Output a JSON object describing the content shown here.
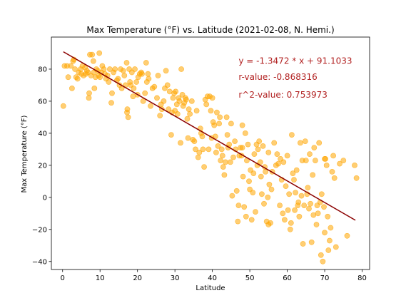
{
  "chart_data": {
    "type": "scatter",
    "title": "Max Temperature (°F) vs. Latitude (2021-02-08, N. Hemi.)",
    "xlabel": "Latitude",
    "ylabel": "Max Temperature (°F)",
    "xlim": [
      -3,
      82
    ],
    "ylim": [
      -45,
      100
    ],
    "xticks": [
      0,
      10,
      20,
      30,
      40,
      50,
      60,
      70,
      80
    ],
    "yticks": [
      -40,
      -20,
      0,
      20,
      40,
      60,
      80
    ],
    "grid": false,
    "marker_color": "#FFA500",
    "line_color": "#8B0000",
    "annotation_color": "#B22222",
    "regression": {
      "slope": -1.3472,
      "intercept": 91.1033,
      "x_range": [
        0.2,
        78.2
      ]
    },
    "annotations": [
      "y = -1.3472 * x + 91.1033",
      "r-value: -0.868316",
      "r^2-value: 0.753973"
    ],
    "points": [
      [
        0.2,
        57
      ],
      [
        0.5,
        82
      ],
      [
        1.2,
        82
      ],
      [
        1.5,
        75
      ],
      [
        2.2,
        82
      ],
      [
        2.5,
        68
      ],
      [
        2.8,
        85
      ],
      [
        3,
        86
      ],
      [
        3.3,
        80
      ],
      [
        3.6,
        75
      ],
      [
        4,
        74
      ],
      [
        4.3,
        78
      ],
      [
        4.8,
        80
      ],
      [
        5,
        77
      ],
      [
        5.3,
        82
      ],
      [
        5.6,
        76
      ],
      [
        6,
        81
      ],
      [
        6.2,
        77
      ],
      [
        6.5,
        79
      ],
      [
        6.8,
        78
      ],
      [
        7,
        62
      ],
      [
        7.1,
        65
      ],
      [
        7.3,
        89
      ],
      [
        7.6,
        76
      ],
      [
        7.9,
        89
      ],
      [
        8.2,
        85
      ],
      [
        8.3,
        78
      ],
      [
        8.5,
        68
      ],
      [
        8.8,
        75
      ],
      [
        9,
        80
      ],
      [
        9.4,
        79
      ],
      [
        9.6,
        76
      ],
      [
        9.8,
        90
      ],
      [
        10,
        75
      ],
      [
        10.3,
        78
      ],
      [
        10.6,
        82
      ],
      [
        11,
        80
      ],
      [
        11.3,
        77
      ],
      [
        11.6,
        74
      ],
      [
        12,
        76
      ],
      [
        12.3,
        72
      ],
      [
        12.6,
        80
      ],
      [
        13,
        59
      ],
      [
        13.2,
        65
      ],
      [
        13.6,
        78
      ],
      [
        14,
        80
      ],
      [
        14.5,
        73
      ],
      [
        14.8,
        74
      ],
      [
        15.2,
        70
      ],
      [
        15.5,
        80
      ],
      [
        15.8,
        68
      ],
      [
        16.2,
        79
      ],
      [
        16.5,
        76
      ],
      [
        16.8,
        70
      ],
      [
        17.1,
        84
      ],
      [
        17.2,
        53
      ],
      [
        17.3,
        55
      ],
      [
        17.5,
        50
      ],
      [
        17.8,
        80
      ],
      [
        18,
        72
      ],
      [
        18.2,
        70
      ],
      [
        18.5,
        78
      ],
      [
        18.8,
        63
      ],
      [
        19,
        68
      ],
      [
        19.3,
        80
      ],
      [
        19.7,
        72
      ],
      [
        20,
        64
      ],
      [
        20.2,
        75
      ],
      [
        20.6,
        77
      ],
      [
        21,
        78
      ],
      [
        21.2,
        77
      ],
      [
        21.5,
        60
      ],
      [
        22,
        65
      ],
      [
        22.3,
        84
      ],
      [
        22.5,
        72
      ],
      [
        22.8,
        77
      ],
      [
        23,
        74
      ],
      [
        23.5,
        57
      ],
      [
        24,
        68
      ],
      [
        24.5,
        69
      ],
      [
        25.2,
        62
      ],
      [
        25.5,
        76
      ],
      [
        26,
        51
      ],
      [
        26.3,
        58
      ],
      [
        26.5,
        55
      ],
      [
        27,
        60
      ],
      [
        27.3,
        68
      ],
      [
        27.6,
        79
      ],
      [
        28,
        70
      ],
      [
        28.3,
        55
      ],
      [
        28.6,
        66
      ],
      [
        29,
        39
      ],
      [
        29.2,
        53
      ],
      [
        29.5,
        62
      ],
      [
        29.8,
        65
      ],
      [
        30,
        54
      ],
      [
        30.2,
        66
      ],
      [
        30.5,
        58
      ],
      [
        30.7,
        52
      ],
      [
        31,
        62
      ],
      [
        31.2,
        60
      ],
      [
        31.5,
        34
      ],
      [
        31.7,
        80
      ],
      [
        32,
        64
      ],
      [
        32.2,
        57
      ],
      [
        32.5,
        59
      ],
      [
        32.8,
        62
      ],
      [
        33,
        61
      ],
      [
        33.3,
        49
      ],
      [
        33.5,
        37
      ],
      [
        33.7,
        55
      ],
      [
        34,
        52
      ],
      [
        34.5,
        60
      ],
      [
        34.8,
        36
      ],
      [
        35.2,
        35
      ],
      [
        35.5,
        30
      ],
      [
        35.8,
        54
      ],
      [
        36.2,
        25
      ],
      [
        36.5,
        28
      ],
      [
        36.8,
        43
      ],
      [
        37,
        40
      ],
      [
        37.3,
        38
      ],
      [
        37.5,
        30
      ],
      [
        37.8,
        19
      ],
      [
        38.1,
        61
      ],
      [
        38.4,
        58
      ],
      [
        38.7,
        63
      ],
      [
        39,
        30
      ],
      [
        39.3,
        63
      ],
      [
        39.6,
        54
      ],
      [
        39.8,
        37
      ],
      [
        40,
        62
      ],
      [
        40.2,
        47
      ],
      [
        40.5,
        45
      ],
      [
        40.8,
        38
      ],
      [
        41,
        28
      ],
      [
        41.2,
        53
      ],
      [
        41.5,
        32
      ],
      [
        41.8,
        46
      ],
      [
        42,
        50
      ],
      [
        42.2,
        23
      ],
      [
        42.5,
        30
      ],
      [
        42.7,
        26
      ],
      [
        42.9,
        19
      ],
      [
        43.2,
        14
      ],
      [
        43.5,
        22
      ],
      [
        43.8,
        50
      ],
      [
        44,
        39
      ],
      [
        44.2,
        31
      ],
      [
        44.5,
        33
      ],
      [
        44.8,
        22
      ],
      [
        45,
        46
      ],
      [
        45.3,
        1
      ],
      [
        45.6,
        25
      ],
      [
        46,
        35
      ],
      [
        46.2,
        30
      ],
      [
        46.5,
        4
      ],
      [
        46.8,
        -15
      ],
      [
        47,
        -5
      ],
      [
        47.2,
        26
      ],
      [
        47.5,
        31
      ],
      [
        47.8,
        26
      ],
      [
        48,
        45
      ],
      [
        48.2,
        13
      ],
      [
        48.5,
        -6
      ],
      [
        48.8,
        40
      ],
      [
        49,
        -12
      ],
      [
        49.2,
        23
      ],
      [
        49.5,
        33
      ],
      [
        49.8,
        10
      ],
      [
        50,
        5
      ],
      [
        50.2,
        17
      ],
      [
        50.5,
        -14
      ],
      [
        50.8,
        3
      ],
      [
        51,
        15
      ],
      [
        51.2,
        27
      ],
      [
        51.5,
        -9
      ],
      [
        51.8,
        33
      ],
      [
        52,
        20
      ],
      [
        52.2,
        30
      ],
      [
        52.5,
        35
      ],
      [
        52.8,
        22
      ],
      [
        53,
        13
      ],
      [
        53.2,
        2
      ],
      [
        53.5,
        32
      ],
      [
        53.8,
        -4
      ],
      [
        54,
        19
      ],
      [
        54.2,
        16
      ],
      [
        54.5,
        -15
      ],
      [
        54.8,
        0
      ],
      [
        55,
        -17
      ],
      [
        55.2,
        8
      ],
      [
        55.5,
        -16
      ],
      [
        55.8,
        5
      ],
      [
        56,
        16
      ],
      [
        56.5,
        34
      ],
      [
        57,
        20
      ],
      [
        57.3,
        27
      ],
      [
        57.6,
        21
      ],
      [
        58,
        -5
      ],
      [
        58.2,
        24
      ],
      [
        58.5,
        11
      ],
      [
        58.8,
        -10
      ],
      [
        59,
        22
      ],
      [
        59.3,
        -14
      ],
      [
        59.6,
        7
      ],
      [
        60,
        26
      ],
      [
        60.2,
        -8
      ],
      [
        60.5,
        2
      ],
      [
        60.8,
        -20
      ],
      [
        61,
        -16
      ],
      [
        61.2,
        39
      ],
      [
        61.5,
        15
      ],
      [
        61.8,
        11
      ],
      [
        62,
        -8
      ],
      [
        62.2,
        3
      ],
      [
        62.5,
        17
      ],
      [
        62.8,
        -5
      ],
      [
        63,
        -3
      ],
      [
        63.2,
        -12
      ],
      [
        63.5,
        34
      ],
      [
        63.8,
        1
      ],
      [
        64,
        23
      ],
      [
        64.2,
        -29
      ],
      [
        64.5,
        -5
      ],
      [
        64.8,
        35
      ],
      [
        65,
        23
      ],
      [
        65.3,
        2
      ],
      [
        65.5,
        6
      ],
      [
        65.8,
        -7
      ],
      [
        66,
        27
      ],
      [
        66.2,
        -4
      ],
      [
        66.5,
        -28
      ],
      [
        66.8,
        14
      ],
      [
        67,
        -11
      ],
      [
        67.2,
        31
      ],
      [
        67.5,
        23
      ],
      [
        67.8,
        -17
      ],
      [
        68,
        -5
      ],
      [
        68.2,
        -10
      ],
      [
        68.5,
        34
      ],
      [
        68.8,
        -3
      ],
      [
        69,
        -36
      ],
      [
        69.2,
        2
      ],
      [
        69.5,
        -40
      ],
      [
        69.8,
        -6
      ],
      [
        70,
        -22
      ],
      [
        70.2,
        24
      ],
      [
        70.5,
        20
      ],
      [
        70.8,
        -12
      ],
      [
        71,
        -33
      ],
      [
        71.3,
        -27
      ],
      [
        71.6,
        -19
      ],
      [
        72,
        16
      ],
      [
        72.3,
        26
      ],
      [
        72.6,
        12
      ],
      [
        73,
        -31
      ],
      [
        74,
        21
      ],
      [
        75,
        23
      ],
      [
        76,
        -24
      ],
      [
        78,
        20
      ],
      [
        78.5,
        12
      ],
      [
        70,
        24
      ],
      [
        48,
        31
      ],
      [
        55,
        28
      ]
    ]
  }
}
